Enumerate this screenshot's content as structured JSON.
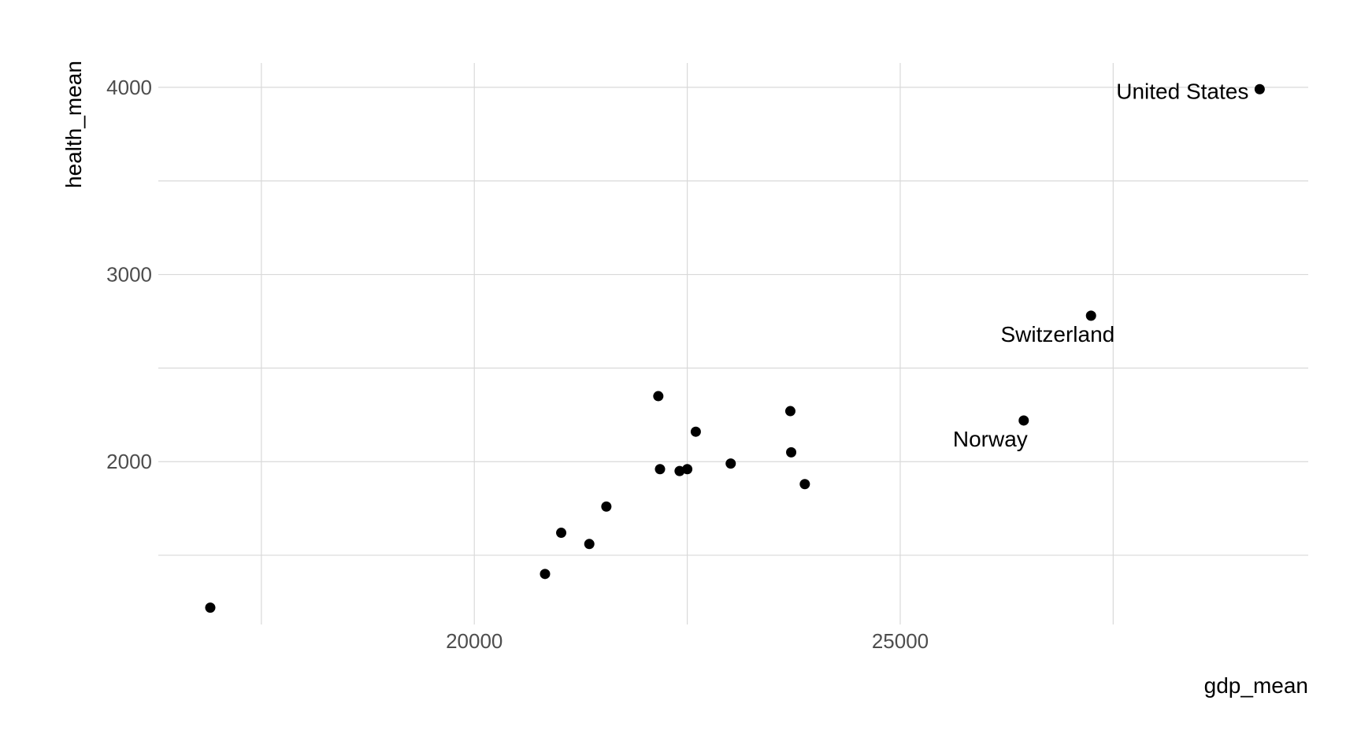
{
  "chart_data": {
    "type": "scatter",
    "xlabel": "gdp_mean",
    "ylabel": "health_mean",
    "xlim": [
      16290,
      29790
    ],
    "ylim": [
      1130,
      4130
    ],
    "x_ticks": [
      20000,
      25000
    ],
    "x_minor": [
      17500,
      22500,
      27500
    ],
    "y_ticks": [
      2000,
      3000,
      4000
    ],
    "y_minor": [
      1500,
      2500,
      3500
    ],
    "grid": true,
    "legend": "none",
    "points": [
      {
        "x": 16900,
        "y": 1220
      },
      {
        "x": 20830,
        "y": 1400
      },
      {
        "x": 21020,
        "y": 1620
      },
      {
        "x": 21350,
        "y": 1560
      },
      {
        "x": 21550,
        "y": 1760
      },
      {
        "x": 22160,
        "y": 2350
      },
      {
        "x": 22180,
        "y": 1960
      },
      {
        "x": 22410,
        "y": 1950
      },
      {
        "x": 22500,
        "y": 1960
      },
      {
        "x": 22600,
        "y": 2160
      },
      {
        "x": 23010,
        "y": 1990
      },
      {
        "x": 23710,
        "y": 2270
      },
      {
        "x": 23720,
        "y": 2050
      },
      {
        "x": 23880,
        "y": 1880
      },
      {
        "x": 26450,
        "y": 2220,
        "label": "Norway"
      },
      {
        "x": 27240,
        "y": 2780,
        "label": "Switzerland"
      },
      {
        "x": 29220,
        "y": 3990,
        "label": "United States"
      }
    ]
  }
}
